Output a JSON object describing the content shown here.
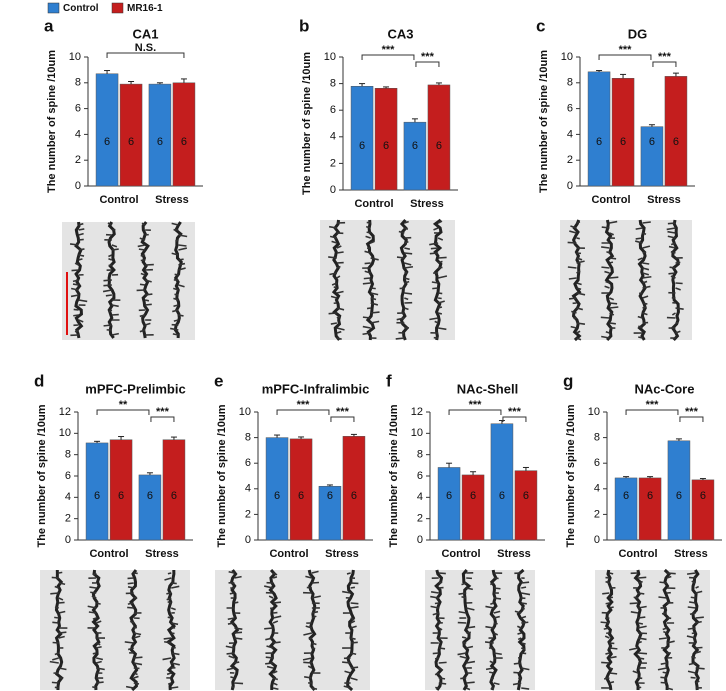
{
  "chart_data": [
    {
      "type": "bar",
      "panel": "a",
      "title": "CA1",
      "ylabel": "The number of spine /10um",
      "categories": [
        "Control",
        "Stress"
      ],
      "ylim": [
        0,
        10
      ],
      "yticks": [
        0,
        2,
        4,
        6,
        8,
        10
      ],
      "annotations": [
        "N.S."
      ],
      "series": [
        {
          "name": "Control",
          "color": "#2f7fd0",
          "values": [
            8.7,
            7.9
          ],
          "errors": [
            0.25,
            0.1
          ],
          "n": [
            6,
            6
          ]
        },
        {
          "name": "MR16-1",
          "color": "#c41e1e",
          "values": [
            7.9,
            8.0
          ],
          "errors": [
            0.2,
            0.3
          ],
          "n": [
            6,
            6
          ]
        }
      ]
    },
    {
      "type": "bar",
      "panel": "b",
      "title": "CA3",
      "ylabel": "The number of spine /10um",
      "categories": [
        "Control",
        "Stress"
      ],
      "ylim": [
        0,
        10
      ],
      "yticks": [
        0,
        2,
        4,
        6,
        8,
        10
      ],
      "annotations": [
        "***",
        "***"
      ],
      "series": [
        {
          "name": "Control",
          "color": "#2f7fd0",
          "values": [
            7.8,
            5.1
          ],
          "errors": [
            0.2,
            0.25
          ],
          "n": [
            6,
            6
          ]
        },
        {
          "name": "MR16-1",
          "color": "#c41e1e",
          "values": [
            7.65,
            7.9
          ],
          "errors": [
            0.1,
            0.15
          ],
          "n": [
            6,
            6
          ]
        }
      ]
    },
    {
      "type": "bar",
      "panel": "c",
      "title": "DG",
      "ylabel": "The number of spine /10um",
      "categories": [
        "Control",
        "Stress"
      ],
      "ylim": [
        0,
        10
      ],
      "yticks": [
        0,
        2,
        4,
        6,
        8,
        10
      ],
      "annotations": [
        "***",
        "***"
      ],
      "series": [
        {
          "name": "Control",
          "color": "#2f7fd0",
          "values": [
            8.85,
            4.6
          ],
          "errors": [
            0.1,
            0.15
          ],
          "n": [
            6,
            6
          ]
        },
        {
          "name": "MR16-1",
          "color": "#c41e1e",
          "values": [
            8.35,
            8.5
          ],
          "errors": [
            0.3,
            0.25
          ],
          "n": [
            6,
            6
          ]
        }
      ]
    },
    {
      "type": "bar",
      "panel": "d",
      "title": "mPFC-Prelimbic",
      "ylabel": "The number of spine /10um",
      "categories": [
        "Control",
        "Stress"
      ],
      "ylim": [
        0,
        12
      ],
      "yticks": [
        0,
        2,
        4,
        6,
        8,
        10,
        12
      ],
      "annotations": [
        "**",
        "***"
      ],
      "series": [
        {
          "name": "Control",
          "color": "#2f7fd0",
          "values": [
            9.1,
            6.1
          ],
          "errors": [
            0.15,
            0.2
          ],
          "n": [
            6,
            6
          ]
        },
        {
          "name": "MR16-1",
          "color": "#c41e1e",
          "values": [
            9.4,
            9.4
          ],
          "errors": [
            0.3,
            0.25
          ],
          "n": [
            6,
            6
          ]
        }
      ]
    },
    {
      "type": "bar",
      "panel": "e",
      "title": "mPFC-Infralimbic",
      "ylabel": "The number of spine /10um",
      "categories": [
        "Control",
        "Stress"
      ],
      "ylim": [
        0,
        10
      ],
      "yticks": [
        0,
        2,
        4,
        6,
        8,
        10
      ],
      "annotations": [
        "***",
        "***"
      ],
      "series": [
        {
          "name": "Control",
          "color": "#2f7fd0",
          "values": [
            8.0,
            4.2
          ],
          "errors": [
            0.2,
            0.1
          ],
          "n": [
            6,
            6
          ]
        },
        {
          "name": "MR16-1",
          "color": "#c41e1e",
          "values": [
            7.9,
            8.1
          ],
          "errors": [
            0.15,
            0.15
          ],
          "n": [
            6,
            6
          ]
        }
      ]
    },
    {
      "type": "bar",
      "panel": "f",
      "title": "NAc-Shell",
      "ylabel": "The number of spine /10um",
      "categories": [
        "Control",
        "Stress"
      ],
      "ylim": [
        0,
        12
      ],
      "yticks": [
        0,
        2,
        4,
        6,
        8,
        10,
        12
      ],
      "annotations": [
        "***",
        "***"
      ],
      "series": [
        {
          "name": "Control",
          "color": "#2f7fd0",
          "values": [
            6.8,
            10.9
          ],
          "errors": [
            0.4,
            0.3
          ],
          "n": [
            6,
            6
          ]
        },
        {
          "name": "MR16-1",
          "color": "#c41e1e",
          "values": [
            6.1,
            6.5
          ],
          "errors": [
            0.3,
            0.3
          ],
          "n": [
            6,
            6
          ]
        }
      ]
    },
    {
      "type": "bar",
      "panel": "g",
      "title": "NAc-Core",
      "ylabel": "The number of spine /10um",
      "categories": [
        "Control",
        "Stress"
      ],
      "ylim": [
        0,
        10
      ],
      "yticks": [
        0,
        2,
        4,
        6,
        8,
        10
      ],
      "annotations": [
        "***",
        "***"
      ],
      "series": [
        {
          "name": "Control",
          "color": "#2f7fd0",
          "values": [
            4.85,
            7.75
          ],
          "errors": [
            0.1,
            0.15
          ],
          "n": [
            6,
            6
          ]
        },
        {
          "name": "MR16-1",
          "color": "#c41e1e",
          "values": [
            4.85,
            4.7
          ],
          "errors": [
            0.1,
            0.1
          ],
          "n": [
            6,
            6
          ]
        }
      ]
    }
  ]
}
